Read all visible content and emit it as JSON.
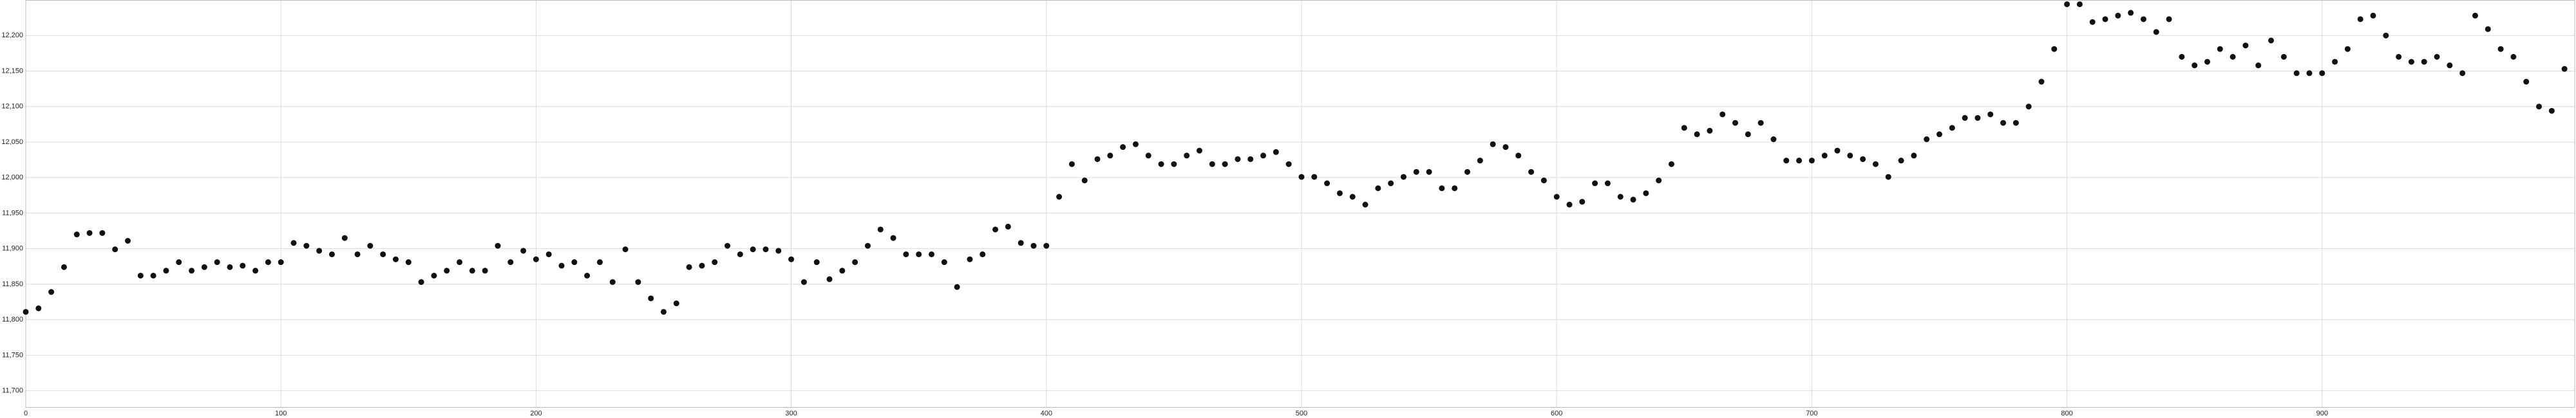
{
  "chart_data": {
    "type": "scatter",
    "x": [
      0,
      5,
      10,
      15,
      20,
      25,
      30,
      35,
      40,
      45,
      50,
      55,
      60,
      65,
      70,
      75,
      80,
      85,
      90,
      95,
      100,
      105,
      110,
      115,
      120,
      125,
      130,
      135,
      140,
      145,
      150,
      155,
      160,
      165,
      170,
      175,
      180,
      185,
      190,
      195,
      200,
      205,
      210,
      215,
      220,
      225,
      230,
      235,
      240,
      245,
      250,
      255,
      260,
      265,
      270,
      275,
      280,
      285,
      290,
      295,
      300,
      305,
      310,
      315,
      320,
      325,
      330,
      335,
      340,
      345,
      350,
      355,
      360,
      365,
      370,
      375,
      380,
      385,
      390,
      395,
      400,
      405,
      410,
      415,
      420,
      425,
      430,
      435,
      440,
      445,
      450,
      455,
      460,
      465,
      470,
      475,
      480,
      485,
      490,
      495,
      500,
      505,
      510,
      515,
      520,
      525,
      530,
      535,
      540,
      545,
      550,
      555,
      560,
      565,
      570,
      575,
      580,
      585,
      590,
      595,
      600,
      605,
      610,
      615,
      620,
      625,
      630,
      635,
      640,
      645,
      650,
      655,
      660,
      665,
      670,
      675,
      680,
      685,
      690,
      695,
      700,
      705,
      710,
      715,
      720,
      725,
      730,
      735,
      740,
      745,
      750,
      755,
      760,
      765,
      770,
      775,
      780,
      785,
      790,
      795,
      800,
      805,
      810,
      815,
      820,
      825,
      830,
      835,
      840,
      845,
      850,
      855,
      860,
      865,
      870,
      875,
      880,
      885,
      890,
      895,
      900,
      905,
      910,
      915,
      920,
      925,
      930,
      935,
      940,
      945,
      950,
      955,
      960,
      965,
      970,
      975,
      980,
      985,
      990,
      995
    ],
    "values": [
      11811,
      11816,
      11839,
      11874,
      11920,
      11922,
      11922,
      11899,
      11911,
      11862,
      11862,
      11869,
      11881,
      11869,
      11874,
      11881,
      11874,
      11876,
      11869,
      11881,
      11881,
      11908,
      11904,
      11897,
      11892,
      11915,
      11892,
      11904,
      11892,
      11885,
      11881,
      11853,
      11862,
      11869,
      11881,
      11869,
      11869,
      11904,
      11881,
      11897,
      11885,
      11892,
      11876,
      11881,
      11862,
      11881,
      11853,
      11899,
      11853,
      11830,
      11811,
      11823,
      11874,
      11876,
      11881,
      11904,
      11892,
      11899,
      11899,
      11897,
      11885,
      11853,
      11881,
      11857,
      11869,
      11881,
      11904,
      11927,
      11915,
      11892,
      11892,
      11892,
      11881,
      11846,
      11885,
      11892,
      11927,
      11931,
      11908,
      11904,
      11904,
      11973,
      12019,
      11996,
      12026,
      12031,
      12043,
      12047,
      12031,
      12019,
      12019,
      12031,
      12038,
      12019,
      12019,
      12026,
      12026,
      12031,
      12036,
      12019,
      12001,
      12001,
      11992,
      11978,
      11973,
      11962,
      11985,
      11992,
      12001,
      12008,
      12008,
      11985,
      11985,
      12008,
      12024,
      12047,
      12043,
      12031,
      12008,
      11996,
      11973,
      11962,
      11966,
      11992,
      11992,
      11973,
      11969,
      11978,
      11996,
      12019,
      12070,
      12061,
      12066,
      12089,
      12077,
      12061,
      12077,
      12054,
      12024,
      12024,
      12024,
      12031,
      12038,
      12031,
      12026,
      12019,
      12001,
      12024,
      12031,
      12054,
      12061,
      12070,
      12084,
      12084,
      12089,
      12077,
      12077,
      12100,
      12135,
      12181,
      12244,
      12244,
      12219,
      12223,
      12228,
      12232,
      12223,
      12205,
      12223,
      12170,
      12158,
      12163,
      12181,
      12170,
      12186,
      12158,
      12193,
      12170,
      12147,
      12147,
      12147,
      12163,
      12181,
      12223,
      12228,
      12200,
      12170,
      12163,
      12163,
      12170,
      12158,
      12147,
      12228,
      12209,
      12181,
      12170,
      12135,
      12100,
      12094,
      12153
    ],
    "color": "#111111",
    "xlim": [
      0,
      999
    ],
    "xticks": [
      0,
      100,
      200,
      300,
      400,
      500,
      600,
      700,
      800,
      900
    ],
    "ylim": [
      11677,
      12250
    ],
    "yticks": [
      {
        "value": 11700,
        "label": "11,700"
      },
      {
        "value": 11750,
        "label": "11,750"
      },
      {
        "value": 11800,
        "label": "11,800"
      },
      {
        "value": 11850,
        "label": "11,850"
      },
      {
        "value": 11900,
        "label": "11,900"
      },
      {
        "value": 11950,
        "label": "11,950"
      },
      {
        "value": 12000,
        "label": "12,000"
      },
      {
        "value": 12050,
        "label": "12,050"
      },
      {
        "value": 12100,
        "label": "12,100"
      },
      {
        "value": 12150,
        "label": "12,150"
      },
      {
        "value": 12200,
        "label": "12,200"
      }
    ],
    "grid": true
  }
}
